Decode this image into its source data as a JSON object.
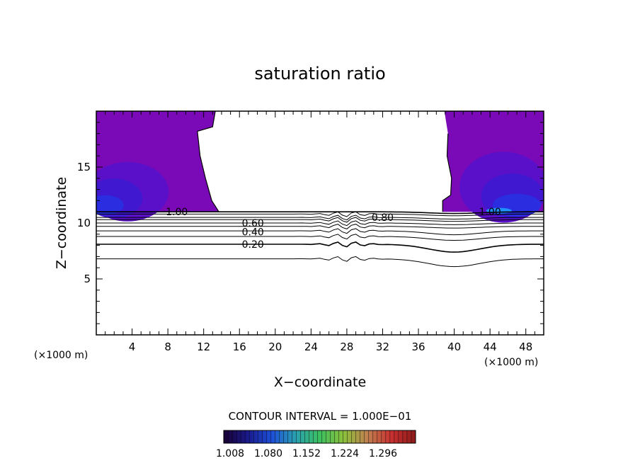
{
  "chart_data": {
    "type": "contour",
    "title": "saturation ratio",
    "xlabel": "X−coordinate",
    "ylabel": "Z−coordinate",
    "x_unit_left": "(×1000 m)",
    "x_unit_right": "(×1000 m)",
    "xlim": [
      0,
      50
    ],
    "ylim": [
      0,
      20
    ],
    "x_ticks": [
      4,
      8,
      12,
      16,
      20,
      24,
      28,
      32,
      36,
      40,
      44,
      48
    ],
    "x_tick_labels": [
      "4",
      "8",
      "12",
      "16",
      "20",
      "24",
      "28",
      "32",
      "36",
      "40",
      "44",
      "48"
    ],
    "y_ticks": [
      5,
      10,
      15
    ],
    "y_tick_labels": [
      "5",
      "10",
      "15"
    ],
    "contour_interval_text": "CONTOUR INTERVAL = 1.000E−01",
    "contour_levels": [
      0.1,
      0.2,
      0.3,
      0.4,
      0.5,
      0.6,
      0.7,
      0.8,
      0.9,
      1.0
    ],
    "contour_labels": [
      {
        "text": "1.00",
        "x": 9.0,
        "z": 11.0
      },
      {
        "text": "0.60",
        "x": 17.5,
        "z": 10.0
      },
      {
        "text": "0.40",
        "x": 17.5,
        "z": 9.2
      },
      {
        "text": "0.20",
        "x": 17.5,
        "z": 8.1
      },
      {
        "text": "0.80",
        "x": 32.0,
        "z": 10.5
      },
      {
        "text": "1.00",
        "x": 44.0,
        "z": 11.0
      }
    ],
    "supersaturated_regions": [
      {
        "name": "left",
        "x_range": [
          0,
          13.5
        ],
        "z_range": [
          11,
          20
        ]
      },
      {
        "name": "right",
        "x_range": [
          38.5,
          50
        ],
        "z_range": [
          11,
          20
        ]
      }
    ],
    "colorbar": {
      "labels": [
        "1.008",
        "1.080",
        "1.152",
        "1.224",
        "1.296"
      ],
      "stops": [
        "#1a0033",
        "#1a1a8c",
        "#1e4fd8",
        "#2aa0b0",
        "#3cc060",
        "#8cc03c",
        "#c08050",
        "#c83030",
        "#8c1a1a"
      ]
    },
    "fill_colors": {
      "base": "#7a0ab8",
      "mid": "#5a10c8",
      "deep": "#3f18d0",
      "edge": "#2a2ee0",
      "cyan": "#1e90ff"
    }
  }
}
